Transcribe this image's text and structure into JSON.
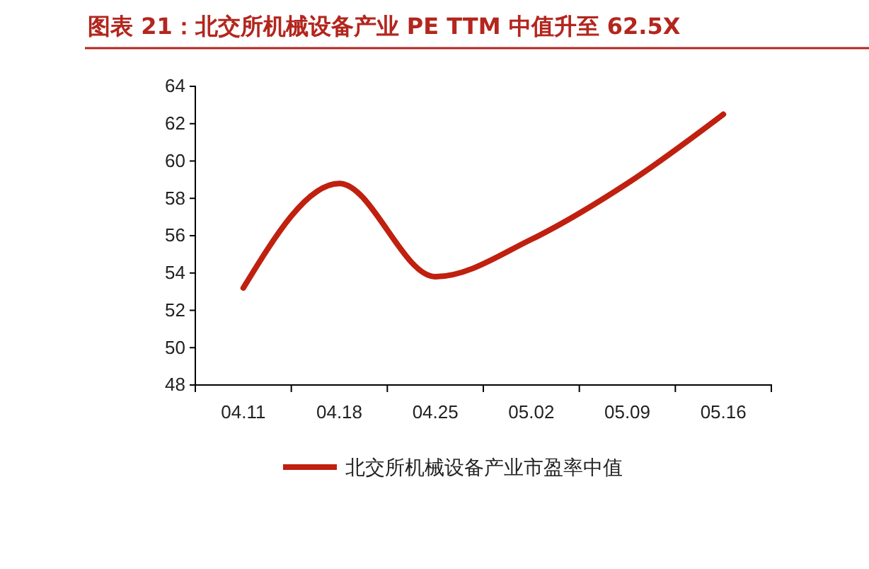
{
  "chart_data": {
    "type": "line",
    "title": "图表 21：北交所机械设备产业 PE TTM 中值升至 62.5X",
    "categories": [
      "04.11",
      "04.18",
      "04.25",
      "05.02",
      "05.09",
      "05.16"
    ],
    "series": [
      {
        "name": "北交所机械设备产业市盈率中值",
        "color": "#c0200f",
        "values": [
          53.2,
          58.8,
          53.8,
          55.8,
          58.8,
          62.5
        ]
      }
    ],
    "ylim": [
      48,
      64
    ],
    "yticks": [
      48,
      50,
      52,
      54,
      56,
      58,
      60,
      62,
      64
    ],
    "grid": false,
    "legend": "bottom",
    "marker": "none",
    "line_style": "solid"
  }
}
